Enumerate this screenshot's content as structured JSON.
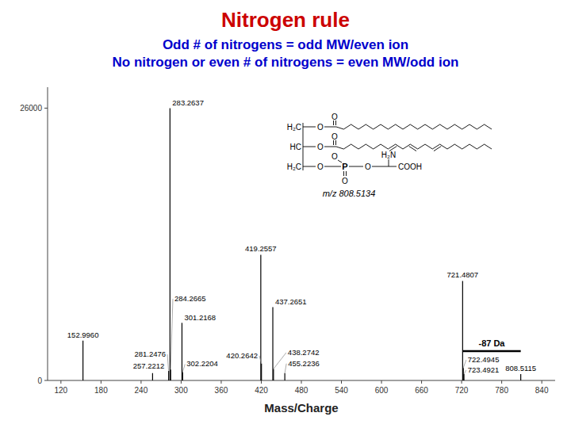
{
  "chart_data": {
    "type": "stem",
    "title": "Nitrogen rule",
    "subtitles": [
      "Odd # of nitrogens = odd MW/even ion",
      "No nitrogen or even # of nitrogens = even MW/odd ion"
    ],
    "title_color": "#cc0000",
    "subtitle_color": "#0000cc",
    "x_label": "Mass/Charge",
    "xlim": [
      100,
      860
    ],
    "ylim": [
      0,
      28000
    ],
    "xticks": [
      120,
      180,
      240,
      300,
      360,
      420,
      480,
      540,
      600,
      660,
      720,
      780,
      840
    ],
    "yticks": [
      0,
      26000
    ],
    "grid": false,
    "color": "#000000",
    "x": [
      152.996,
      257.2212,
      281.2476,
      284.2665,
      283.2637,
      301.2168,
      302.2204,
      419.2557,
      420.2642,
      437.2651,
      438.2742,
      455.2236,
      721.4807,
      722.4945,
      723.4921,
      808.5115
    ],
    "values": [
      3800,
      700,
      900,
      1050,
      26000,
      5500,
      800,
      12000,
      1600,
      7000,
      1100,
      700,
      9500,
      1200,
      600,
      600
    ],
    "labels": [
      "152.9960",
      "257.2212",
      "281.2476",
      "284.2665",
      "283.2637",
      "301.2168",
      "302.2204",
      "419.2557",
      "420.2642",
      "437.2651",
      "438.2742",
      "455.2236",
      "721.4807",
      "722.4945",
      "723.4921",
      "808.5115"
    ],
    "annotation": {
      "text": "-87 Da",
      "x1": 721.4807,
      "x2": 808.5115,
      "y": 2800
    },
    "structure_labels": [
      "H₂C",
      "HC",
      "H₂C",
      "O",
      "O",
      "O",
      "O",
      "O",
      "P",
      "O",
      "O",
      "O",
      "H₂N",
      "COOH"
    ],
    "mz_label": "m/z 808.5134"
  }
}
